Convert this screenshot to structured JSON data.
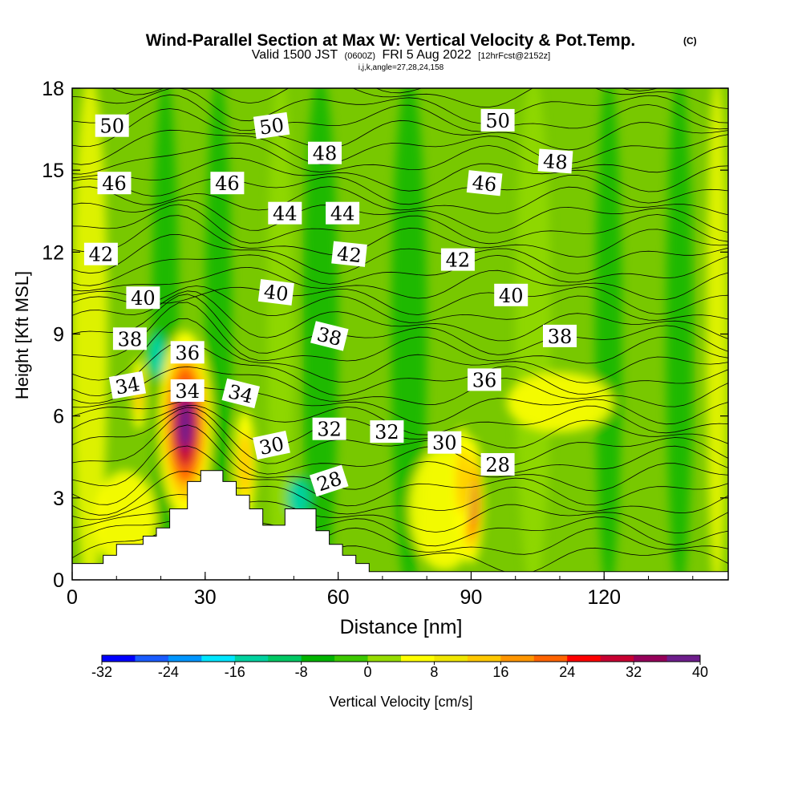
{
  "chart_data": {
    "type": "heatmap",
    "title": "Wind-Parallel Section at Max W: Vertical Velocity & Pot.Temp.",
    "title_mark": "(C)",
    "subtitle_valid": "Valid 1500 JST",
    "subtitle_utc": "(0600Z)",
    "subtitle_date": "FRI 5 Aug 2022",
    "subtitle_fcst": "[12hrFcst@2152z]",
    "subtitle_indices": "i,j,k,angle=27,28,24,158",
    "xlabel": "Distance [nm]",
    "ylabel": "Height [Kft MSL]",
    "xlim": [
      0,
      148
    ],
    "ylim": [
      0,
      18
    ],
    "x_ticks": [
      "0",
      "30",
      "60",
      "90",
      "120"
    ],
    "y_ticks": [
      "0",
      "3",
      "6",
      "9",
      "12",
      "15",
      "18"
    ],
    "colorbar": {
      "label": "Vertical Velocity [cm/s]",
      "tick_labels": [
        "-32",
        "-24",
        "-16",
        "-8",
        "0",
        "8",
        "16",
        "24",
        "32",
        "40"
      ],
      "min": -32,
      "step": 4,
      "colors": [
        "#0000ff",
        "#1a5cff",
        "#0096ff",
        "#00e6ff",
        "#00d2a0",
        "#00c864",
        "#00b400",
        "#3cc800",
        "#96dc00",
        "#ffff00",
        "#f0e600",
        "#ffc800",
        "#ff9600",
        "#ff6400",
        "#ff0000",
        "#c80032",
        "#96005a",
        "#6e1e8c"
      ]
    },
    "theta_labels": [
      {
        "text": "50",
        "x": 9,
        "y": 16.6,
        "rot": 0
      },
      {
        "text": "50",
        "x": 45,
        "y": 16.6,
        "rot": -8
      },
      {
        "text": "50",
        "x": 96,
        "y": 16.8,
        "rot": 0
      },
      {
        "text": "48",
        "x": 57,
        "y": 15.6,
        "rot": 0
      },
      {
        "text": "48",
        "x": 109,
        "y": 15.3,
        "rot": 4
      },
      {
        "text": "46",
        "x": 9.5,
        "y": 14.5,
        "rot": 0
      },
      {
        "text": "46",
        "x": 35,
        "y": 14.5,
        "rot": 0
      },
      {
        "text": "46",
        "x": 93,
        "y": 14.5,
        "rot": 6
      },
      {
        "text": "44",
        "x": 48,
        "y": 13.4,
        "rot": 0
      },
      {
        "text": "44",
        "x": 61,
        "y": 13.4,
        "rot": 0
      },
      {
        "text": "42",
        "x": 6.5,
        "y": 11.9,
        "rot": 0
      },
      {
        "text": "42",
        "x": 62.5,
        "y": 11.9,
        "rot": 6
      },
      {
        "text": "42",
        "x": 87,
        "y": 11.7,
        "rot": 0
      },
      {
        "text": "40",
        "x": 16,
        "y": 10.3,
        "rot": 0
      },
      {
        "text": "40",
        "x": 46,
        "y": 10.5,
        "rot": 7
      },
      {
        "text": "40",
        "x": 99,
        "y": 10.4,
        "rot": 0
      },
      {
        "text": "38",
        "x": 13,
        "y": 8.8,
        "rot": 0
      },
      {
        "text": "38",
        "x": 58,
        "y": 8.9,
        "rot": 14
      },
      {
        "text": "38",
        "x": 110,
        "y": 8.9,
        "rot": 0
      },
      {
        "text": "36",
        "x": 26,
        "y": 8.3,
        "rot": 0
      },
      {
        "text": "36",
        "x": 93,
        "y": 7.3,
        "rot": 0
      },
      {
        "text": "34",
        "x": 12.5,
        "y": 7.1,
        "rot": -10
      },
      {
        "text": "34",
        "x": 26,
        "y": 6.9,
        "rot": 0
      },
      {
        "text": "34",
        "x": 38,
        "y": 6.8,
        "rot": 14
      },
      {
        "text": "32",
        "x": 58,
        "y": 5.5,
        "rot": 0
      },
      {
        "text": "32",
        "x": 71,
        "y": 5.4,
        "rot": 0
      },
      {
        "text": "30",
        "x": 45,
        "y": 4.9,
        "rot": -12
      },
      {
        "text": "30",
        "x": 84,
        "y": 5.0,
        "rot": 0
      },
      {
        "text": "28",
        "x": 58,
        "y": 3.6,
        "rot": -18
      },
      {
        "text": "28",
        "x": 96,
        "y": 4.2,
        "rot": 0
      }
    ],
    "terrain_profile": [
      [
        0,
        0.6
      ],
      [
        7,
        0.6
      ],
      [
        7,
        0.9
      ],
      [
        10,
        0.9
      ],
      [
        10,
        1.3
      ],
      [
        16,
        1.3
      ],
      [
        16,
        1.6
      ],
      [
        19,
        1.6
      ],
      [
        19,
        1.9
      ],
      [
        22,
        1.9
      ],
      [
        22,
        2.6
      ],
      [
        26,
        2.6
      ],
      [
        26,
        3.6
      ],
      [
        29,
        3.6
      ],
      [
        29,
        4.0
      ],
      [
        34,
        4.0
      ],
      [
        34,
        3.6
      ],
      [
        37,
        3.6
      ],
      [
        37,
        3.1
      ],
      [
        40,
        3.1
      ],
      [
        40,
        2.6
      ],
      [
        43,
        2.6
      ],
      [
        43,
        2.0
      ],
      [
        48,
        2.0
      ],
      [
        48,
        2.6
      ],
      [
        55,
        2.6
      ],
      [
        55,
        1.8
      ],
      [
        58,
        1.8
      ],
      [
        58,
        1.3
      ],
      [
        61,
        1.3
      ],
      [
        61,
        0.9
      ],
      [
        64,
        0.9
      ],
      [
        64,
        0.6
      ],
      [
        67,
        0.6
      ],
      [
        67,
        0.3
      ],
      [
        148,
        0.3
      ]
    ],
    "updrafts": [
      {
        "x": 25.5,
        "y": 5.7,
        "w": 30,
        "h": 6.8
      },
      {
        "x": 90,
        "y": 2.9,
        "w": 14,
        "h": 4.6
      },
      {
        "x": 39,
        "y": 4.2,
        "w": 12,
        "h": 4.0
      },
      {
        "x": 88,
        "y": 3.6,
        "w": 11,
        "h": 4.0
      },
      {
        "x": 15,
        "y": 6.8,
        "w": 8,
        "h": 2.6
      }
    ],
    "downdrafts": [
      {
        "x": 19,
        "y": 8.2,
        "w": 4,
        "h": 1.6
      },
      {
        "x": 51,
        "y": 3.0,
        "w": 5,
        "h": 1.5
      }
    ]
  }
}
